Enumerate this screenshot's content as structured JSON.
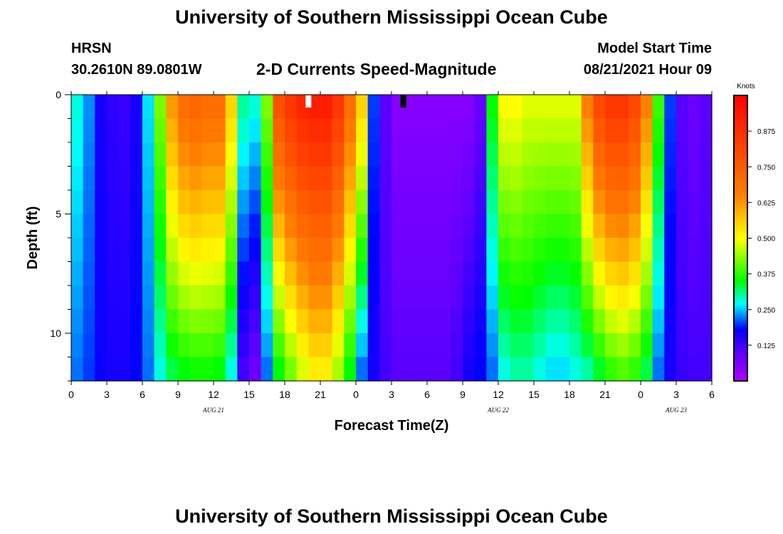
{
  "header": {
    "title_top": "University of Southern Mississippi Ocean Cube",
    "title_bottom": "University of Southern Mississippi Ocean Cube",
    "station": "HRSN",
    "location": "30.2610N  89.0801W",
    "plot_title": "2-D Currents Speed-Magnitude",
    "model_start_label": "Model Start Time",
    "model_start_value": "08/21/2021 Hour 09"
  },
  "chart_data": {
    "type": "heatmap",
    "title": "2-D Currents Speed-Magnitude",
    "xlabel": "Forecast Time(Z)",
    "ylabel": "Depth (ft)",
    "units": "Knots",
    "x_range_hours": [
      0,
      54
    ],
    "y_range_ft": [
      0,
      12
    ],
    "y_ticks": [
      "0",
      "5",
      "10"
    ],
    "y_tick_values": [
      0,
      5,
      10
    ],
    "x_ticks": [
      "0",
      "3",
      "6",
      "9",
      "12",
      "15",
      "18",
      "21",
      "0",
      "3",
      "6",
      "9",
      "12",
      "15",
      "18",
      "21",
      "0",
      "3",
      "6"
    ],
    "date_labels": [
      {
        "text": "AUG 21",
        "hour": 12
      },
      {
        "text": "AUG 22",
        "hour": 36
      },
      {
        "text": "AUG 23",
        "hour": 51
      }
    ],
    "colorbar": {
      "min": 0,
      "max": 1.0,
      "ticks": [
        "0.125",
        "0.250",
        "0.375",
        "0.500",
        "0.625",
        "0.750",
        "0.875"
      ],
      "tick_values": [
        0.125,
        0.25,
        0.375,
        0.5,
        0.625,
        0.75,
        0.875
      ]
    },
    "markers": [
      {
        "hour": 20,
        "color": "#ffffff"
      },
      {
        "hour": 28,
        "color": "#000000"
      }
    ],
    "n_cols": 54,
    "n_rows": 12,
    "speed_profile_knots": {
      "hours": [
        0,
        1,
        2,
        3,
        4,
        5,
        6,
        7,
        8,
        9,
        10,
        11,
        12,
        13,
        14,
        15,
        16,
        17,
        18,
        19,
        20,
        21,
        22,
        23,
        24,
        25,
        26,
        27,
        28,
        29,
        30,
        31,
        32,
        33,
        34,
        35,
        36,
        37,
        38,
        39,
        40,
        41,
        42,
        43,
        44,
        45,
        46,
        47,
        48,
        49,
        50,
        51,
        52,
        53
      ],
      "surface": [
        0.28,
        0.23,
        0.16,
        0.14,
        0.13,
        0.16,
        0.26,
        0.42,
        0.62,
        0.7,
        0.72,
        0.7,
        0.7,
        0.55,
        0.3,
        0.28,
        0.42,
        0.78,
        0.85,
        0.9,
        0.92,
        0.92,
        0.85,
        0.7,
        0.55,
        0.2,
        0.1,
        0.05,
        0.05,
        0.05,
        0.05,
        0.05,
        0.05,
        0.05,
        0.09,
        0.35,
        0.5,
        0.5,
        0.48,
        0.48,
        0.48,
        0.48,
        0.48,
        0.65,
        0.8,
        0.85,
        0.85,
        0.8,
        0.65,
        0.38,
        0.2,
        0.1,
        0.08,
        0.1
      ],
      "bottom": [
        0.22,
        0.2,
        0.17,
        0.16,
        0.16,
        0.18,
        0.22,
        0.28,
        0.33,
        0.35,
        0.36,
        0.36,
        0.35,
        0.28,
        0.12,
        0.08,
        0.22,
        0.35,
        0.42,
        0.48,
        0.52,
        0.52,
        0.45,
        0.35,
        0.22,
        0.16,
        0.12,
        0.1,
        0.1,
        0.1,
        0.1,
        0.1,
        0.12,
        0.16,
        0.18,
        0.22,
        0.28,
        0.3,
        0.3,
        0.28,
        0.26,
        0.26,
        0.28,
        0.3,
        0.34,
        0.38,
        0.4,
        0.38,
        0.33,
        0.22,
        0.16,
        0.13,
        0.12,
        0.12
      ]
    }
  }
}
